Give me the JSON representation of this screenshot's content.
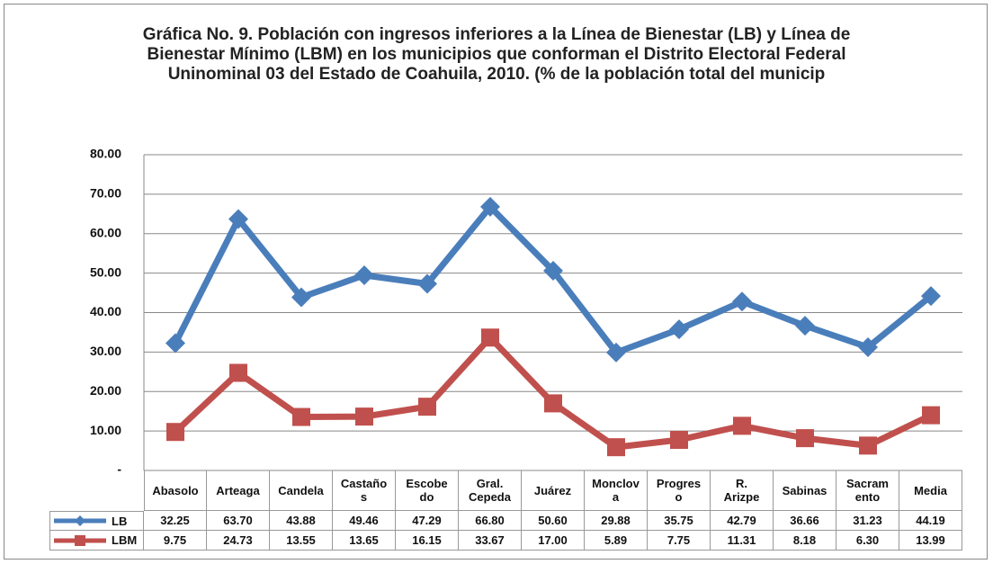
{
  "chart_data": {
    "type": "line",
    "title": "Gráfica No.  9. Población con ingresos inferiores a la Línea de Bienestar (LB) y Línea de Bienestar Mínimo (LBM) en los municipios que conforman el Distrito Electoral Federal Uninominal 03 del Estado de Coahuila, 2010. (% de la población total del municip",
    "categories": [
      "Abasolo",
      "Arteaga",
      "Candela",
      "Castaño\ns",
      "Escobe\ndo",
      "Gral.\nCepeda",
      "Juárez",
      "Monclov\na",
      "Progres\no",
      "R.\nArizpe",
      "Sabinas",
      "Sacram\nento",
      "Media"
    ],
    "series": [
      {
        "name": "LB",
        "color": "#4a7ebb",
        "marker": "diamond",
        "values": [
          32.25,
          63.7,
          43.88,
          49.46,
          47.29,
          66.8,
          50.6,
          29.88,
          35.75,
          42.79,
          36.66,
          31.23,
          44.19
        ],
        "value_labels": [
          "32.25",
          "63.70",
          "43.88",
          "49.46",
          "47.29",
          "66.80",
          "50.60",
          "29.88",
          "35.75",
          "42.79",
          "36.66",
          "31.23",
          "44.19"
        ]
      },
      {
        "name": "LBM",
        "color": "#c0504d",
        "marker": "square",
        "values": [
          9.75,
          24.73,
          13.55,
          13.65,
          16.15,
          33.67,
          17.0,
          5.89,
          7.75,
          11.31,
          8.18,
          6.3,
          13.99
        ],
        "value_labels": [
          "9.75",
          "24.73",
          "13.55",
          "13.65",
          "16.15",
          "33.67",
          "17.00",
          "5.89",
          "7.75",
          "11.31",
          "8.18",
          "6.30",
          "13.99"
        ]
      }
    ],
    "ylim": [
      0,
      80
    ],
    "yticks": [
      {
        "value": 0,
        "label": "-"
      },
      {
        "value": 10,
        "label": "10.00"
      },
      {
        "value": 20,
        "label": "20.00"
      },
      {
        "value": 30,
        "label": "30.00"
      },
      {
        "value": 40,
        "label": "40.00"
      },
      {
        "value": 50,
        "label": "50.00"
      },
      {
        "value": 60,
        "label": "60.00"
      },
      {
        "value": 70,
        "label": "70.00"
      },
      {
        "value": 80,
        "label": "80.00"
      }
    ],
    "grid": true
  }
}
